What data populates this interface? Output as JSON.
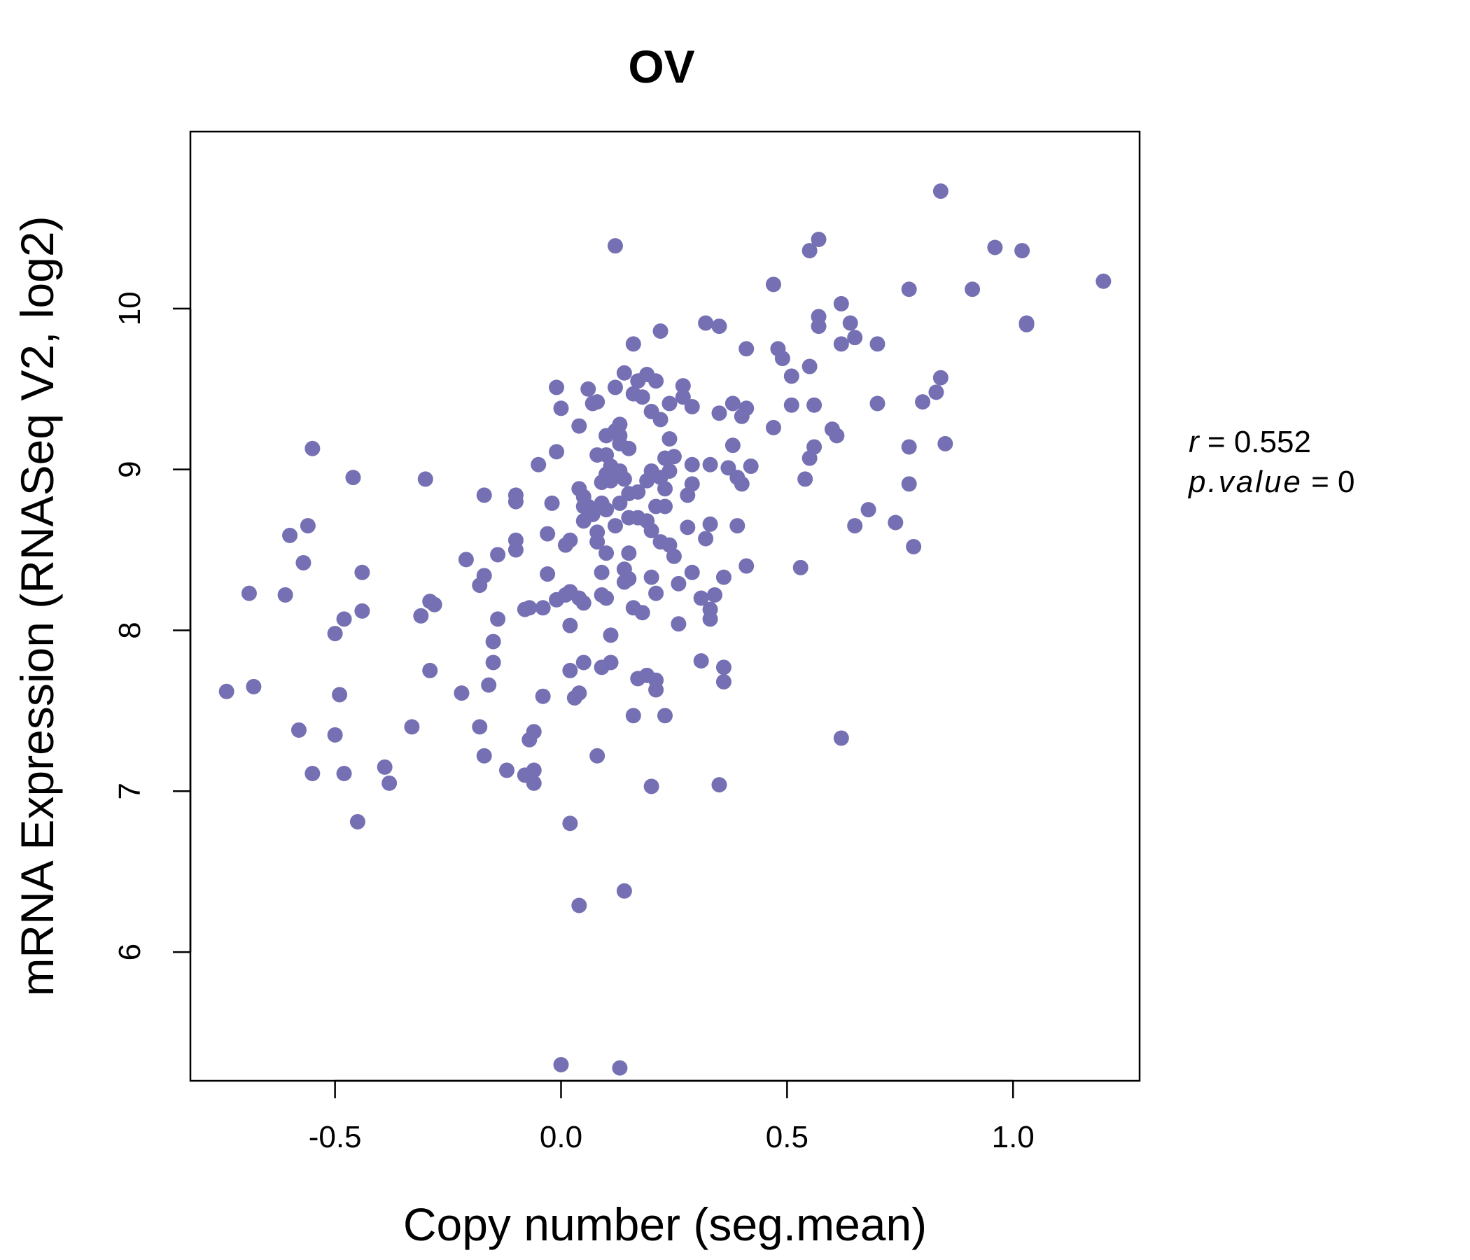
{
  "chart_data": {
    "type": "scatter",
    "title": "OV",
    "xlabel": "Copy number (seg.mean)",
    "ylabel": "mRNA Expression (RNASeq V2, log2)",
    "xlim": [
      -0.82,
      1.28
    ],
    "ylim": [
      5.2,
      11.1
    ],
    "x_ticks": [
      -0.5,
      0.0,
      0.5,
      1.0
    ],
    "x_tick_labels": [
      "-0.5",
      "0.0",
      "0.5",
      "1.0"
    ],
    "y_ticks": [
      6,
      7,
      8,
      9,
      10
    ],
    "y_tick_labels": [
      "6",
      "7",
      "8",
      "9",
      "10"
    ],
    "grid": false,
    "legend": "none",
    "point_color": "#7570b3",
    "annotation": {
      "r_label": "r",
      "r_value": "0.552",
      "p_label": "p.value",
      "p_value": "0"
    },
    "points": [
      [
        -0.74,
        7.62
      ],
      [
        -0.69,
        8.23
      ],
      [
        -0.68,
        7.65
      ],
      [
        -0.61,
        8.22
      ],
      [
        -0.6,
        8.59
      ],
      [
        -0.58,
        7.38
      ],
      [
        -0.57,
        8.42
      ],
      [
        -0.56,
        8.65
      ],
      [
        -0.55,
        9.13
      ],
      [
        -0.55,
        7.11
      ],
      [
        -0.5,
        7.35
      ],
      [
        -0.5,
        7.98
      ],
      [
        -0.49,
        7.6
      ],
      [
        -0.48,
        8.07
      ],
      [
        -0.48,
        7.11
      ],
      [
        -0.46,
        8.95
      ],
      [
        -0.45,
        6.81
      ],
      [
        -0.44,
        8.12
      ],
      [
        -0.44,
        8.36
      ],
      [
        -0.39,
        7.15
      ],
      [
        -0.38,
        7.05
      ],
      [
        -0.33,
        7.4
      ],
      [
        -0.31,
        8.09
      ],
      [
        -0.3,
        8.94
      ],
      [
        -0.29,
        8.18
      ],
      [
        -0.29,
        7.75
      ],
      [
        -0.28,
        8.16
      ],
      [
        -0.22,
        7.61
      ],
      [
        -0.21,
        8.44
      ],
      [
        -0.18,
        7.4
      ],
      [
        -0.18,
        8.28
      ],
      [
        -0.17,
        8.34
      ],
      [
        -0.17,
        7.22
      ],
      [
        -0.17,
        8.84
      ],
      [
        -0.16,
        7.66
      ],
      [
        -0.15,
        7.93
      ],
      [
        -0.15,
        7.8
      ],
      [
        -0.14,
        8.07
      ],
      [
        -0.14,
        8.47
      ],
      [
        -0.12,
        7.13
      ],
      [
        -0.1,
        8.56
      ],
      [
        -0.1,
        8.5
      ],
      [
        -0.1,
        8.84
      ],
      [
        -0.1,
        8.8
      ],
      [
        -0.08,
        8.13
      ],
      [
        -0.08,
        7.1
      ],
      [
        -0.07,
        8.14
      ],
      [
        -0.07,
        7.32
      ],
      [
        -0.06,
        7.37
      ],
      [
        -0.06,
        7.13
      ],
      [
        -0.06,
        7.05
      ],
      [
        -0.05,
        9.03
      ],
      [
        -0.04,
        8.14
      ],
      [
        -0.04,
        7.59
      ],
      [
        -0.03,
        8.35
      ],
      [
        -0.03,
        8.6
      ],
      [
        -0.02,
        8.79
      ],
      [
        -0.01,
        9.11
      ],
      [
        -0.01,
        9.51
      ],
      [
        -0.01,
        8.19
      ],
      [
        0.0,
        9.38
      ],
      [
        0.0,
        5.3
      ],
      [
        0.01,
        8.22
      ],
      [
        0.01,
        8.53
      ],
      [
        0.02,
        8.56
      ],
      [
        0.02,
        8.24
      ],
      [
        0.02,
        8.03
      ],
      [
        0.02,
        7.75
      ],
      [
        0.02,
        6.8
      ],
      [
        0.03,
        7.58
      ],
      [
        0.04,
        7.61
      ],
      [
        0.04,
        6.29
      ],
      [
        0.04,
        8.2
      ],
      [
        0.04,
        9.27
      ],
      [
        0.04,
        8.88
      ],
      [
        0.05,
        8.83
      ],
      [
        0.05,
        8.68
      ],
      [
        0.05,
        8.77
      ],
      [
        0.05,
        8.17
      ],
      [
        0.05,
        7.8
      ],
      [
        0.06,
        9.5
      ],
      [
        0.06,
        8.77
      ],
      [
        0.07,
        8.72
      ],
      [
        0.07,
        9.41
      ],
      [
        0.08,
        9.42
      ],
      [
        0.08,
        9.09
      ],
      [
        0.08,
        8.55
      ],
      [
        0.08,
        8.61
      ],
      [
        0.08,
        7.22
      ],
      [
        0.09,
        8.22
      ],
      [
        0.09,
        8.79
      ],
      [
        0.09,
        8.92
      ],
      [
        0.09,
        7.77
      ],
      [
        0.09,
        8.36
      ],
      [
        0.1,
        9.21
      ],
      [
        0.1,
        9.09
      ],
      [
        0.1,
        8.97
      ],
      [
        0.1,
        8.75
      ],
      [
        0.1,
        8.48
      ],
      [
        0.1,
        8.2
      ],
      [
        0.11,
        8.93
      ],
      [
        0.11,
        9.02
      ],
      [
        0.11,
        7.97
      ],
      [
        0.11,
        7.8
      ],
      [
        0.12,
        9.51
      ],
      [
        0.12,
        9.24
      ],
      [
        0.12,
        8.65
      ],
      [
        0.12,
        10.39
      ],
      [
        0.13,
        9.28
      ],
      [
        0.13,
        9.21
      ],
      [
        0.13,
        9.16
      ],
      [
        0.13,
        8.99
      ],
      [
        0.13,
        8.79
      ],
      [
        0.13,
        5.28
      ],
      [
        0.14,
        9.6
      ],
      [
        0.14,
        8.94
      ],
      [
        0.14,
        8.38
      ],
      [
        0.14,
        8.3
      ],
      [
        0.14,
        6.38
      ],
      [
        0.15,
        9.13
      ],
      [
        0.15,
        8.85
      ],
      [
        0.15,
        8.7
      ],
      [
        0.15,
        8.48
      ],
      [
        0.15,
        8.32
      ],
      [
        0.16,
        9.78
      ],
      [
        0.16,
        9.47
      ],
      [
        0.16,
        7.47
      ],
      [
        0.16,
        8.14
      ],
      [
        0.17,
        9.55
      ],
      [
        0.17,
        8.86
      ],
      [
        0.17,
        8.7
      ],
      [
        0.17,
        7.7
      ],
      [
        0.18,
        9.45
      ],
      [
        0.18,
        8.11
      ],
      [
        0.19,
        9.59
      ],
      [
        0.19,
        8.68
      ],
      [
        0.19,
        8.93
      ],
      [
        0.19,
        7.72
      ],
      [
        0.2,
        9.36
      ],
      [
        0.2,
        8.99
      ],
      [
        0.2,
        8.62
      ],
      [
        0.2,
        8.33
      ],
      [
        0.2,
        7.03
      ],
      [
        0.21,
        9.55
      ],
      [
        0.21,
        8.77
      ],
      [
        0.21,
        8.23
      ],
      [
        0.21,
        7.69
      ],
      [
        0.21,
        7.63
      ],
      [
        0.22,
        9.86
      ],
      [
        0.22,
        9.31
      ],
      [
        0.22,
        8.95
      ],
      [
        0.22,
        8.55
      ],
      [
        0.23,
        9.07
      ],
      [
        0.23,
        8.88
      ],
      [
        0.23,
        8.77
      ],
      [
        0.23,
        7.47
      ],
      [
        0.24,
        9.41
      ],
      [
        0.24,
        9.19
      ],
      [
        0.24,
        8.99
      ],
      [
        0.24,
        8.53
      ],
      [
        0.25,
        9.08
      ],
      [
        0.25,
        8.46
      ],
      [
        0.26,
        8.29
      ],
      [
        0.26,
        8.04
      ],
      [
        0.27,
        9.52
      ],
      [
        0.27,
        9.45
      ],
      [
        0.28,
        8.84
      ],
      [
        0.28,
        8.64
      ],
      [
        0.29,
        9.39
      ],
      [
        0.29,
        9.03
      ],
      [
        0.29,
        8.36
      ],
      [
        0.29,
        8.91
      ],
      [
        0.31,
        8.2
      ],
      [
        0.31,
        7.81
      ],
      [
        0.32,
        9.91
      ],
      [
        0.32,
        8.57
      ],
      [
        0.33,
        9.03
      ],
      [
        0.33,
        8.66
      ],
      [
        0.33,
        8.13
      ],
      [
        0.33,
        8.07
      ],
      [
        0.34,
        8.22
      ],
      [
        0.35,
        9.89
      ],
      [
        0.35,
        9.35
      ],
      [
        0.36,
        8.33
      ],
      [
        0.36,
        7.77
      ],
      [
        0.36,
        7.68
      ],
      [
        0.35,
        7.04
      ],
      [
        0.37,
        9.01
      ],
      [
        0.38,
        9.41
      ],
      [
        0.38,
        9.15
      ],
      [
        0.39,
        8.95
      ],
      [
        0.39,
        8.65
      ],
      [
        0.4,
        9.33
      ],
      [
        0.4,
        8.91
      ],
      [
        0.41,
        9.75
      ],
      [
        0.41,
        9.38
      ],
      [
        0.41,
        8.4
      ],
      [
        0.42,
        9.02
      ],
      [
        0.47,
        9.26
      ],
      [
        0.47,
        10.15
      ],
      [
        0.48,
        9.75
      ],
      [
        0.49,
        9.69
      ],
      [
        0.51,
        9.58
      ],
      [
        0.51,
        9.4
      ],
      [
        0.53,
        8.39
      ],
      [
        0.54,
        8.94
      ],
      [
        0.55,
        9.64
      ],
      [
        0.55,
        9.07
      ],
      [
        0.55,
        10.36
      ],
      [
        0.56,
        9.4
      ],
      [
        0.56,
        9.14
      ],
      [
        0.57,
        10.43
      ],
      [
        0.57,
        9.95
      ],
      [
        0.57,
        9.89
      ],
      [
        0.6,
        9.25
      ],
      [
        0.61,
        9.21
      ],
      [
        0.62,
        10.03
      ],
      [
        0.62,
        9.78
      ],
      [
        0.62,
        7.33
      ],
      [
        0.64,
        9.91
      ],
      [
        0.65,
        9.82
      ],
      [
        0.65,
        8.65
      ],
      [
        0.68,
        8.75
      ],
      [
        0.7,
        9.78
      ],
      [
        0.7,
        9.41
      ],
      [
        0.74,
        8.67
      ],
      [
        0.77,
        9.14
      ],
      [
        0.77,
        8.91
      ],
      [
        0.77,
        10.12
      ],
      [
        0.78,
        8.52
      ],
      [
        0.8,
        9.42
      ],
      [
        0.83,
        9.48
      ],
      [
        0.84,
        9.57
      ],
      [
        0.84,
        10.73
      ],
      [
        0.85,
        9.16
      ],
      [
        0.91,
        10.12
      ],
      [
        0.96,
        10.38
      ],
      [
        1.02,
        10.36
      ],
      [
        1.03,
        9.9
      ],
      [
        1.03,
        9.91
      ],
      [
        1.2,
        10.17
      ]
    ]
  }
}
